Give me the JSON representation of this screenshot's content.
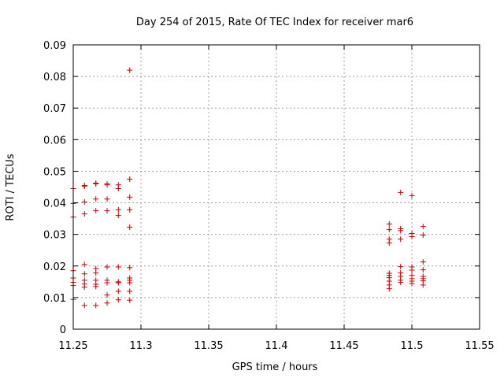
{
  "chart_data": {
    "type": "scatter",
    "title": "Day 254 of 2015, Rate Of TEC Index for receiver mar6",
    "xlabel": "GPS time / hours",
    "ylabel": "ROTI / TECUs",
    "xlim": [
      11.25,
      11.55
    ],
    "ylim": [
      0,
      0.09
    ],
    "x_ticks": [
      11.25,
      11.3,
      11.35,
      11.4,
      11.45,
      11.5,
      11.55
    ],
    "y_ticks": [
      0,
      0.01,
      0.02,
      0.03,
      0.04,
      0.05,
      0.06,
      0.07,
      0.08,
      0.09
    ],
    "x_tick_labels": [
      "11.25",
      "11.3",
      "11.35",
      "11.4",
      "11.45",
      "11.5",
      "11.55"
    ],
    "y_tick_labels": [
      "0",
      "0.01",
      "0.02",
      "0.03",
      "0.04",
      "0.05",
      "0.06",
      "0.07",
      "0.08",
      "0.09"
    ],
    "grid": true,
    "marker": "plus",
    "marker_color": "#cc0000",
    "series": [
      {
        "name": "mar6",
        "points": [
          [
            11.25,
            0.0445
          ],
          [
            11.25,
            0.0398
          ],
          [
            11.25,
            0.0355
          ],
          [
            11.25,
            0.0185
          ],
          [
            11.25,
            0.0162
          ],
          [
            11.25,
            0.0148
          ],
          [
            11.25,
            0.0138
          ],
          [
            11.25,
            0.0094
          ],
          [
            11.2583,
            0.0455
          ],
          [
            11.2583,
            0.0452
          ],
          [
            11.2583,
            0.0403
          ],
          [
            11.2583,
            0.0365
          ],
          [
            11.2583,
            0.0205
          ],
          [
            11.2583,
            0.0175
          ],
          [
            11.2583,
            0.0155
          ],
          [
            11.2583,
            0.0143
          ],
          [
            11.2583,
            0.0133
          ],
          [
            11.2583,
            0.0075
          ],
          [
            11.2667,
            0.0462
          ],
          [
            11.2667,
            0.046
          ],
          [
            11.2667,
            0.0412
          ],
          [
            11.2667,
            0.0375
          ],
          [
            11.2667,
            0.0192
          ],
          [
            11.2667,
            0.0178
          ],
          [
            11.2667,
            0.0155
          ],
          [
            11.2667,
            0.0142
          ],
          [
            11.2667,
            0.0135
          ],
          [
            11.2667,
            0.0075
          ],
          [
            11.275,
            0.046
          ],
          [
            11.275,
            0.0457
          ],
          [
            11.275,
            0.0412
          ],
          [
            11.275,
            0.0375
          ],
          [
            11.275,
            0.0197
          ],
          [
            11.275,
            0.0155
          ],
          [
            11.275,
            0.0147
          ],
          [
            11.275,
            0.0108
          ],
          [
            11.275,
            0.0083
          ],
          [
            11.2833,
            0.0457
          ],
          [
            11.2833,
            0.0445
          ],
          [
            11.2833,
            0.0378
          ],
          [
            11.2833,
            0.036
          ],
          [
            11.2833,
            0.0197
          ],
          [
            11.2833,
            0.015
          ],
          [
            11.2833,
            0.0147
          ],
          [
            11.2833,
            0.012
          ],
          [
            11.2833,
            0.0093
          ],
          [
            11.2917,
            0.082
          ],
          [
            11.2917,
            0.0475
          ],
          [
            11.2917,
            0.0418
          ],
          [
            11.2917,
            0.0378
          ],
          [
            11.2917,
            0.0323
          ],
          [
            11.2917,
            0.0195
          ],
          [
            11.2917,
            0.0162
          ],
          [
            11.2917,
            0.0155
          ],
          [
            11.2917,
            0.0147
          ],
          [
            11.2917,
            0.012
          ],
          [
            11.2917,
            0.0092
          ],
          [
            11.4833,
            0.0333
          ],
          [
            11.4833,
            0.0315
          ],
          [
            11.4833,
            0.0285
          ],
          [
            11.4833,
            0.0273
          ],
          [
            11.4833,
            0.0177
          ],
          [
            11.4833,
            0.017
          ],
          [
            11.4833,
            0.0163
          ],
          [
            11.4833,
            0.0152
          ],
          [
            11.4833,
            0.014
          ],
          [
            11.4833,
            0.0128
          ],
          [
            11.4917,
            0.0433
          ],
          [
            11.4917,
            0.0318
          ],
          [
            11.4917,
            0.0312
          ],
          [
            11.4917,
            0.0285
          ],
          [
            11.4917,
            0.0198
          ],
          [
            11.4917,
            0.0178
          ],
          [
            11.4917,
            0.0167
          ],
          [
            11.4917,
            0.0155
          ],
          [
            11.4917,
            0.0148
          ],
          [
            11.5,
            0.0423
          ],
          [
            11.5,
            0.0303
          ],
          [
            11.5,
            0.0293
          ],
          [
            11.5,
            0.0197
          ],
          [
            11.5,
            0.0187
          ],
          [
            11.5,
            0.017
          ],
          [
            11.5,
            0.016
          ],
          [
            11.5,
            0.0152
          ],
          [
            11.5,
            0.0145
          ],
          [
            11.5083,
            0.0325
          ],
          [
            11.5083,
            0.0298
          ],
          [
            11.5083,
            0.0213
          ],
          [
            11.5083,
            0.0188
          ],
          [
            11.5083,
            0.0167
          ],
          [
            11.5083,
            0.016
          ],
          [
            11.5083,
            0.0153
          ],
          [
            11.5083,
            0.014
          ]
        ]
      }
    ]
  }
}
